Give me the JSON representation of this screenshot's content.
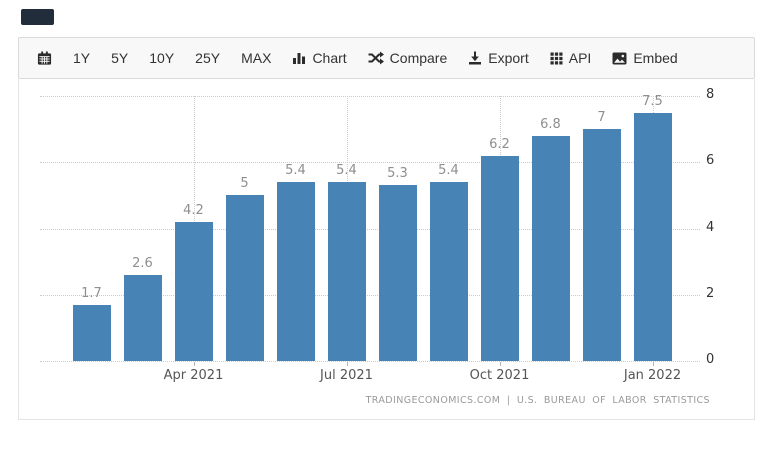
{
  "corner_fragment": {
    "color": "#212d3a"
  },
  "toolbar": {
    "background": "#f8f8f8",
    "items": [
      {
        "id": "calendar",
        "label": "",
        "icon": "calendar-icon"
      },
      {
        "id": "range-1y",
        "label": "1Y"
      },
      {
        "id": "range-5y",
        "label": "5Y"
      },
      {
        "id": "range-10y",
        "label": "10Y"
      },
      {
        "id": "range-25y",
        "label": "25Y"
      },
      {
        "id": "range-max",
        "label": "MAX"
      },
      {
        "id": "chart",
        "label": "Chart",
        "icon": "bar-chart-icon"
      },
      {
        "id": "compare",
        "label": "Compare",
        "icon": "compare-shuffle-icon"
      },
      {
        "id": "export",
        "label": "Export",
        "icon": "export-download-icon"
      },
      {
        "id": "api",
        "label": "API",
        "icon": "api-grid-icon"
      },
      {
        "id": "embed",
        "label": "Embed",
        "icon": "embed-image-icon"
      }
    ]
  },
  "chart_data": {
    "type": "bar",
    "values": [
      1.7,
      2.6,
      4.2,
      5,
      5.4,
      5.4,
      5.3,
      5.4,
      6.2,
      6.8,
      7,
      7.5
    ],
    "value_labels": [
      "1.7",
      "2.6",
      "4.2",
      "5",
      "5.4",
      "5.4",
      "5.3",
      "5.4",
      "6.2",
      "6.8",
      "7",
      "7.5"
    ],
    "x_ticks": [
      {
        "label": "Apr 2021",
        "bar_index": 2
      },
      {
        "label": "Jul 2021",
        "bar_index": 5
      },
      {
        "label": "Oct 2021",
        "bar_index": 8
      },
      {
        "label": "Jan 2022",
        "bar_index": 11
      }
    ],
    "y_ticks": [
      0,
      2,
      4,
      6,
      8
    ],
    "ylim": [
      0,
      8
    ],
    "y_axis_position": "right",
    "grid": "dotted",
    "legend": "none",
    "bar_color": "#4783b4",
    "title": "",
    "xlabel": "",
    "ylabel": ""
  },
  "attribution": "TRADINGECONOMICS.COM | U.S. BUREAU OF LABOR STATISTICS"
}
